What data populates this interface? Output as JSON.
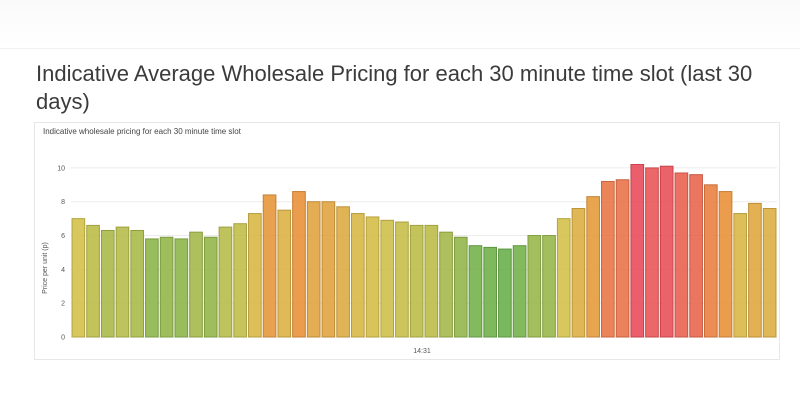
{
  "page": {
    "title": "Indicative Average Wholesale Pricing for each 30 minute time slot (last 30 days)"
  },
  "chart_data": {
    "type": "bar",
    "title": "Indicative wholesale pricing for each 30 minute time slot",
    "xlabel": "14:31",
    "ylabel": "Price per unit (p)",
    "ylim": [
      0,
      11
    ],
    "yticks": [
      0,
      2,
      4,
      6,
      8,
      10
    ],
    "grid": true,
    "colors": {
      "low": "#6ab04c",
      "mid": "#d4c14a",
      "high": "#e9923a",
      "peak": "#e94d5c"
    },
    "values": [
      7.0,
      6.6,
      6.3,
      6.5,
      6.3,
      5.8,
      5.9,
      5.8,
      6.2,
      5.9,
      6.5,
      6.7,
      7.3,
      8.4,
      7.5,
      8.6,
      8.0,
      8.0,
      7.7,
      7.3,
      7.1,
      6.9,
      6.8,
      6.6,
      6.6,
      6.2,
      5.9,
      5.4,
      5.3,
      5.2,
      5.4,
      6.0,
      6.0,
      7.0,
      7.6,
      8.3,
      9.2,
      9.3,
      10.2,
      10.0,
      10.1,
      9.7,
      9.6,
      9.0,
      8.6,
      7.3,
      7.9,
      7.6
    ]
  }
}
